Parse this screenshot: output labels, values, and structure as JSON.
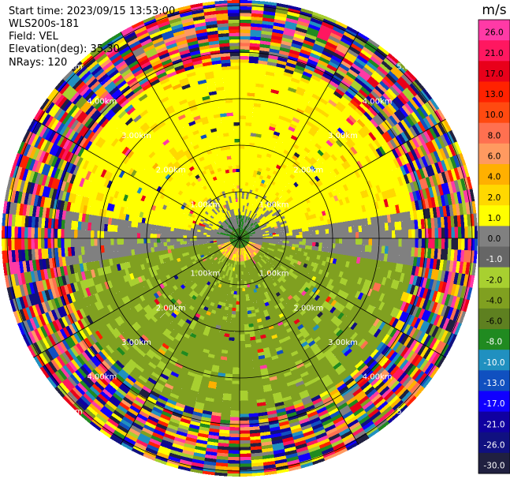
{
  "info": {
    "start_time": "Start time: 2023/09/15 13:53:00",
    "station": "WLS200s-181",
    "field": "Field: VEL",
    "elevation": "Elevation(deg): 35.30",
    "nrays": "NRays: 120"
  },
  "chart_data": {
    "type": "heatmap",
    "projection": "polar-ppi",
    "units": "m/s",
    "nrays": 120,
    "range_rings_km": [
      1,
      2,
      3,
      4,
      5
    ],
    "ring_labels": [
      "1.00km",
      "2.00km",
      "3.00km",
      "4.00km",
      "5.00km"
    ],
    "colorbar": {
      "unit_label": "m/s",
      "ticks": [
        "26.0",
        "21.0",
        "17.0",
        "13.0",
        "10.0",
        "8.0",
        "6.0",
        "4.0",
        "2.0",
        "1.0",
        "0.0",
        "-1.0",
        "-2.0",
        "-4.0",
        "-6.0",
        "-8.0",
        "-10.0",
        "-13.0",
        "-17.0",
        "-21.0",
        "-26.0",
        "-30.0"
      ],
      "colors": [
        "#ff3aa6",
        "#ff1760",
        "#e8001a",
        "#ff2200",
        "#ff4a10",
        "#ff7050",
        "#ff9a60",
        "#ffb000",
        "#ffd800",
        "#ffff00",
        "#808080",
        "#666666",
        "#a8d030",
        "#80a020",
        "#5e8020",
        "#208a20",
        "#2090c0",
        "#1050c0",
        "#1000ff",
        "#1000a0",
        "#101080",
        "#202040"
      ]
    }
  }
}
